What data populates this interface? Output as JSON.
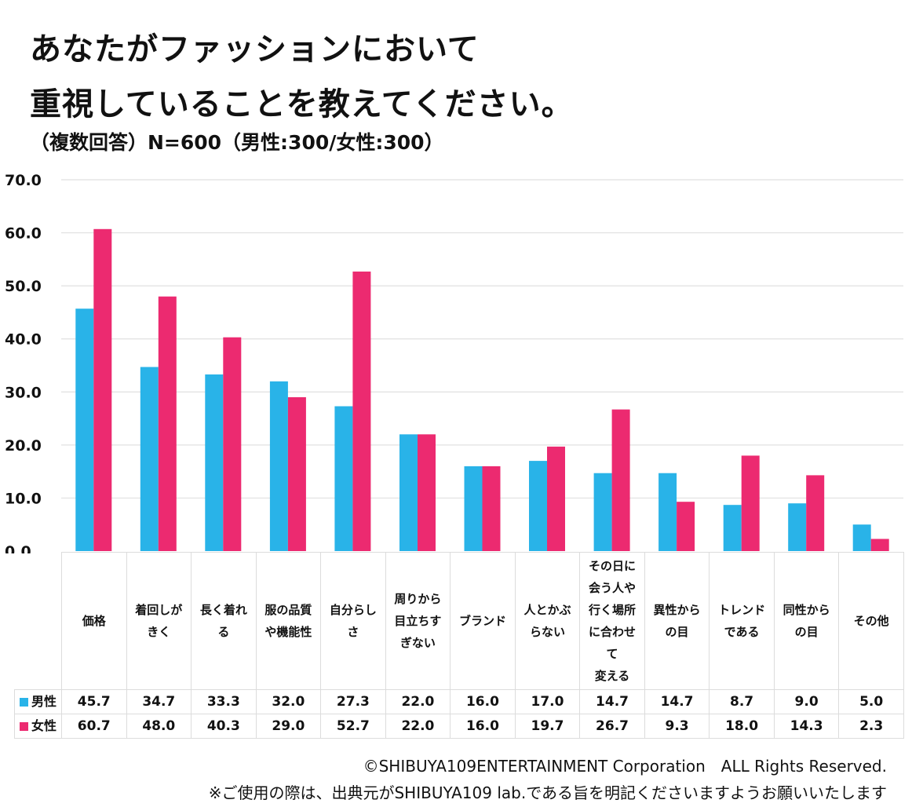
{
  "title": {
    "line1": "あなたがファッションにおいて",
    "line2": "重視していることを教えてください。",
    "subtitle": "（複数回答）N=600（男性:300/女性:300）"
  },
  "colors": {
    "male": "#29b3e8",
    "female": "#ec2a70",
    "grid": "#e0e0e0"
  },
  "chart_data": {
    "type": "bar",
    "title": "あなたがファッションにおいて重視していることを教えてください。",
    "subtitle": "（複数回答）N=600（男性:300/女性:300）",
    "xlabel": "",
    "ylabel": "",
    "ylim": [
      0,
      70
    ],
    "yticks": [
      "0.0",
      "10.0",
      "20.0",
      "30.0",
      "40.0",
      "50.0",
      "60.0",
      "70.0"
    ],
    "ytick_values": [
      0,
      10,
      20,
      30,
      40,
      50,
      60,
      70
    ],
    "grid": true,
    "legend_placement": "table-left",
    "categories": [
      "価格",
      "着回しがきく",
      "長く着れる",
      "服の品質や機能性",
      "自分らしさ",
      "周りから目立ちすぎない",
      "ブランド",
      "人とかぶらない",
      "その日に会う人や行く場所に合わせて変える",
      "異性からの目",
      "トレンドである",
      "同性からの目",
      "その他"
    ],
    "category_labels_display": [
      "価格",
      "着回しが\nきく",
      "長く着れ\nる",
      "服の品質\nや機能性",
      "自分らし\nさ",
      "周りから\n目立ちす\nぎない",
      "ブランド",
      "人とかぶ\nらない",
      "その日に\n会う人や\n行く場所\nに合わせ\nて\n変える",
      "異性から\nの目",
      "トレンド\nである",
      "同性から\nの目",
      "その他"
    ],
    "series": [
      {
        "name": "男性",
        "color": "#29b3e8",
        "values": [
          45.7,
          34.7,
          33.3,
          32.0,
          27.3,
          22.0,
          16.0,
          17.0,
          14.7,
          14.7,
          8.7,
          9.0,
          5.0
        ],
        "labels": [
          "45.7",
          "34.7",
          "33.3",
          "32.0",
          "27.3",
          "22.0",
          "16.0",
          "17.0",
          "14.7",
          "14.7",
          "8.7",
          "9.0",
          "5.0"
        ]
      },
      {
        "name": "女性",
        "color": "#ec2a70",
        "values": [
          60.7,
          48.0,
          40.3,
          29.0,
          52.7,
          22.0,
          16.0,
          19.7,
          26.7,
          9.3,
          18.0,
          14.3,
          2.3
        ],
        "labels": [
          "60.7",
          "48.0",
          "40.3",
          "29.0",
          "52.7",
          "22.0",
          "16.0",
          "19.7",
          "26.7",
          "9.3",
          "18.0",
          "14.3",
          "2.3"
        ]
      }
    ]
  },
  "footer": {
    "copyright": "©SHIBUYA109ENTERTAINMENT Corporation　ALL Rights Reserved.",
    "notice": "※ご使用の際は、出典元がSHIBUYA109 lab.である旨を明記くださいますようお願いいたします"
  }
}
